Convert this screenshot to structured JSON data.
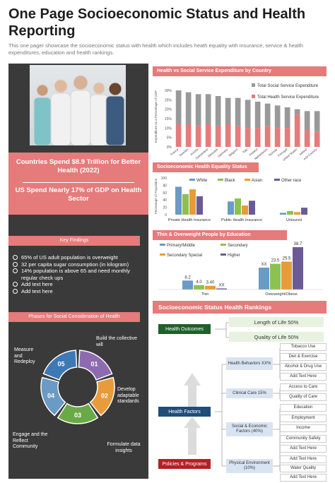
{
  "title": "One Page Socioeconomic Status and Health Reporting",
  "subtitle": "This one pager showcase the socioeconomic status with health which includes heath equality with insurance, service & health expenditures, education and health rankings.",
  "banner": {
    "line1": "Countries Spend $8.9 Trillion for Better Health (2022)",
    "line2": "US Spend Nearly 17% of GDP on Health Sector"
  },
  "key_findings": {
    "heading": "Key Findings",
    "items": [
      "65% of US adult population is overweight",
      "32 per capita sugar consumption (in kilogram)",
      "14% population is above 65 and need monthly regular check ups",
      "Add text here",
      "Add text here"
    ]
  },
  "phases": {
    "heading": "Phases for Social Consideration of Health",
    "segments": [
      "01",
      "02",
      "03",
      "04",
      "05"
    ],
    "labels": [
      "Build the collective will",
      "Develop adaptable standards",
      "Formulate data insights",
      "Engage and the Reflect Community",
      "Measure and Redeploy"
    ],
    "colors": [
      "#8e6bb0",
      "#e89b3a",
      "#6aaa46",
      "#6b9ac4",
      "#3d7ab5"
    ]
  },
  "chart_spend": {
    "heading": "Health vs Social Service Expenditure by Country",
    "ylabel": "Expenditure as a Percentage of GDP",
    "yticks": [
      "0%",
      "5%",
      "10%",
      "15%",
      "20%",
      "25%",
      "30%"
    ],
    "legend": [
      "Total Social Service Expenditure",
      "Total Health Service Expenditure"
    ],
    "colors": [
      "#999999",
      "#e57b7b"
    ]
  },
  "chart_data": [
    {
      "type": "bar",
      "title": "Health vs Social Service Expenditure by Country",
      "ylabel": "Expenditure as a Percentage of GDP",
      "ylim": [
        0,
        30
      ],
      "categories": [
        "France",
        "Sweden",
        "Austria",
        "Switzerland",
        "Denmark",
        "Germany",
        "Belgium",
        "Italy",
        "Finland",
        "Netherlands",
        "Norway",
        "Portugal",
        "United States",
        "Ireland",
        "Add Country"
      ],
      "series": [
        {
          "name": "Total Social Service Expenditure",
          "values": [
            30,
            29,
            28,
            28,
            27,
            26,
            26,
            25,
            24,
            23,
            22,
            21,
            20,
            19,
            19
          ]
        },
        {
          "name": "Total Health Service Expenditure",
          "values": [
            12,
            12,
            11,
            12,
            11,
            12,
            11,
            10,
            10,
            11,
            10,
            10,
            17,
            9,
            8
          ]
        }
      ],
      "legend": "top-right"
    },
    {
      "type": "bar",
      "title": "Socioeconomic Health Equality Status",
      "ylabel": "Percentage of Population",
      "ylim": [
        0,
        100
      ],
      "categories": [
        "Private Health Insurance",
        "Public Health Insurance",
        "Uninsured"
      ],
      "series": [
        {
          "name": "White",
          "values": [
            76,
            36,
            5
          ]
        },
        {
          "name": "Black",
          "values": [
            56,
            44,
            10
          ]
        },
        {
          "name": "Asian",
          "values": [
            69,
            25,
            7
          ]
        },
        {
          "name": "Other race",
          "values": [
            50,
            38,
            19
          ]
        }
      ],
      "legend": "top"
    },
    {
      "type": "bar",
      "title": "Thin & Overweight People by Education",
      "categories": [
        "Thin",
        "Overweight/Obese"
      ],
      "series": [
        {
          "name": "Primary/Middle",
          "values": [
            8.2,
            "XX"
          ]
        },
        {
          "name": "Secondary",
          "values": [
            4.0,
            23.5
          ]
        },
        {
          "name": "Secondary Special",
          "values": [
            3.4,
            25.5
          ]
        },
        {
          "name": "Higher",
          "values": [
            "XX",
            38.7
          ]
        }
      ],
      "legend": "top-left"
    }
  ],
  "chart_equality": {
    "heading": "Socioeconomic Health Equality  Status",
    "ylabel": "Percentage of Population",
    "yticks": [
      "0",
      "20",
      "40",
      "60",
      "80",
      "100"
    ],
    "legend": [
      "White",
      "Black",
      "Asian",
      "Other race"
    ],
    "colors": [
      "#6b9ac4",
      "#8cc152",
      "#e89b3a",
      "#6b5b95"
    ],
    "categories": [
      "Private Health Insurance",
      "Public Health Insurance",
      "Unisured"
    ]
  },
  "chart_edu": {
    "heading": "Thin & Overweight People by Education",
    "legend": [
      "Primary/Middle",
      "Secondary",
      "Secondary Special",
      "Higher"
    ],
    "colors": [
      "#6b9ac4",
      "#8cc152",
      "#e89b3a",
      "#6b5b95"
    ],
    "categories": [
      "Thin",
      "Overweight/Obese"
    ],
    "labels": [
      [
        "8.2",
        "4.0",
        "3.40",
        "XX"
      ],
      [
        "XX",
        "23.5",
        "25.5",
        "38.7"
      ]
    ]
  },
  "rankings": {
    "heading": "Socioeconomic Status Health Rankings",
    "outcomes": "Health Outcomes",
    "length": "Length of Life 50%",
    "quality": "Quality of Life 50%",
    "factors": "Health Factors",
    "policies": "Policies & Programs",
    "behaviors": "Health Behaviors XX%",
    "clinical": "Clinical Care 15%",
    "social": "Social & Economic Factors (40%)",
    "physical": "Physical Environment (10%)",
    "items": [
      "Tobacco Use",
      "Diet & Exercise",
      "Alcohol & Drug Use",
      "Add Text Here",
      "Access to Care",
      "Quality of Care",
      "Education",
      "Employment",
      "Income",
      "Community Safety",
      "Add Text Here",
      "Add Text Here",
      "Water Quality",
      "Add Text Here"
    ]
  }
}
